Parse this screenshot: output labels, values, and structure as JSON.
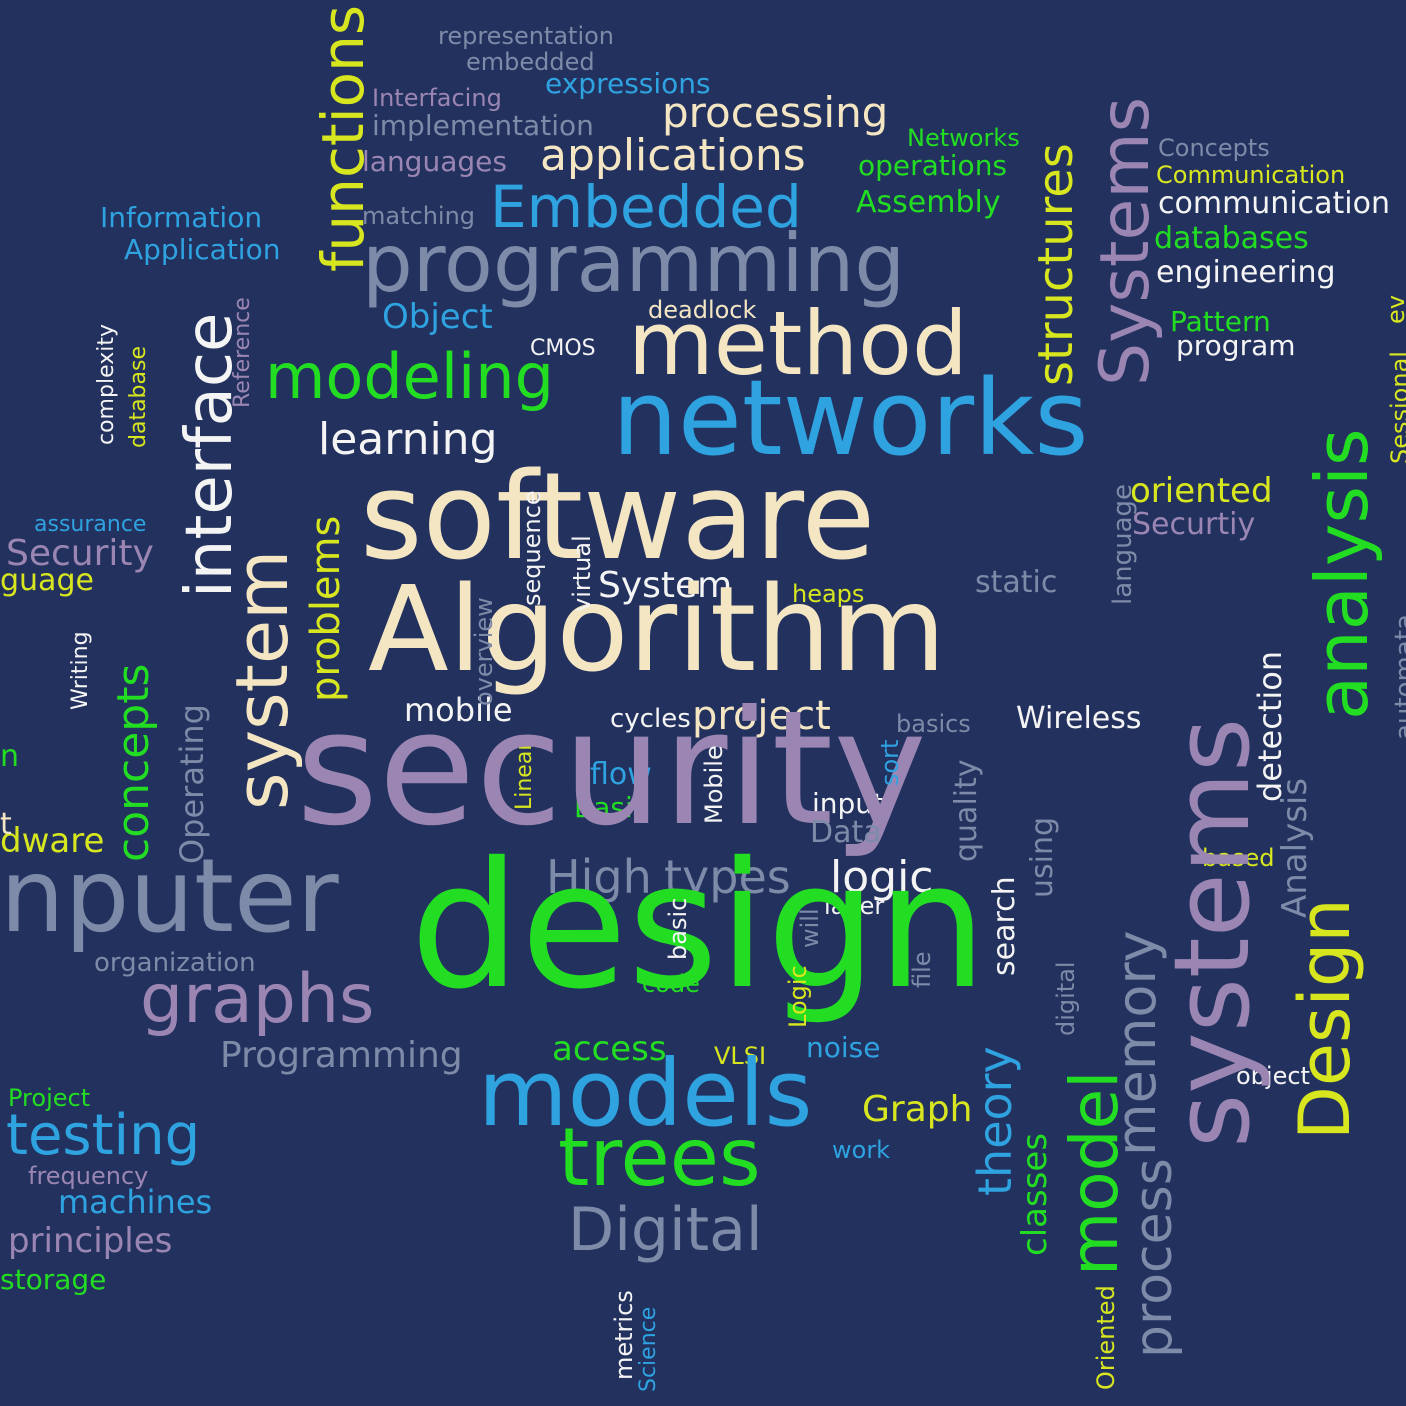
{
  "palette": {
    "background": "#22315e",
    "cream": "#f5e6c3",
    "blue": "#2fa2e0",
    "green": "#22dd22",
    "yellow": "#d8e61f",
    "lime": "#b7e34a",
    "purple": "#9b86b3",
    "slate": "#7d8aa8",
    "white": "#f4f4f4"
  },
  "words": [
    "representation",
    "embedded",
    "expressions",
    "Interfacing",
    "implementation",
    "processing",
    "Networks",
    "applications",
    "languages",
    "operations",
    "Concepts",
    "Communication",
    "Information",
    "matching",
    "Embedded",
    "Assembly",
    "communication",
    "Application",
    "databases",
    "programming",
    "engineering",
    "deadlock",
    "Object",
    "Pattern",
    "program",
    "CMOS",
    "method",
    "modeling",
    "networks",
    "Reference",
    "complexity",
    "database",
    "learning",
    "oriented",
    "software",
    "assurance",
    "Security",
    "Securtiy",
    "language",
    "System",
    "heaps",
    "static",
    "Algorithm",
    "Writing",
    "mobile",
    "cycles",
    "project",
    "basics",
    "Wireless",
    "flow",
    "Linear",
    "Basic",
    "input",
    "security",
    "Data",
    "dware",
    "concepts",
    "High",
    "types",
    "logic",
    "layer",
    "based",
    "nputer",
    "design",
    "organization",
    "code",
    "basic",
    "graphs",
    "Programming",
    "access",
    "VLSI",
    "noise",
    "object",
    "models",
    "Graph",
    "Project",
    "testing",
    "work",
    "trees",
    "frequency",
    "machines",
    "Digital",
    "principles",
    "storage",
    "metrics",
    "Science",
    "functions",
    "interface",
    "system",
    "problems",
    "Operating",
    "overview",
    "sequence",
    "virtual",
    "Mobile",
    "sort",
    "quality",
    "using",
    "search",
    "file",
    "Logic",
    "will",
    "theory",
    "classes",
    "model",
    "process",
    "Oriented",
    "memory",
    "digital",
    "structures",
    "Systems",
    "systems",
    "Analysis",
    "detection",
    "Design",
    "analysis",
    "automata",
    "Sessional",
    "ev",
    "t",
    "n",
    "guage"
  ]
}
